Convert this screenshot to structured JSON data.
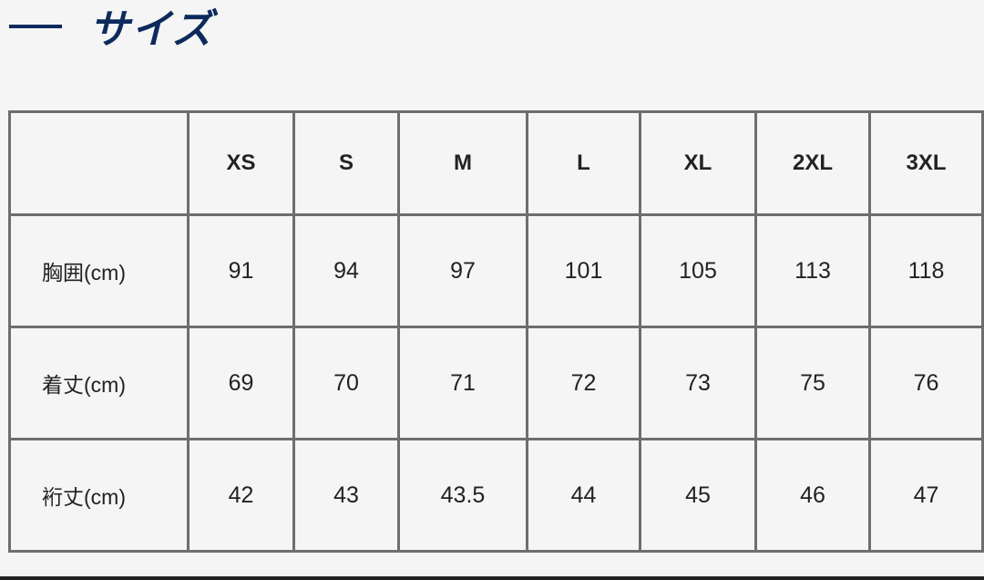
{
  "section": {
    "title": "サイズ"
  },
  "table": {
    "headers": [
      "",
      "XS",
      "S",
      "M",
      "L",
      "XL",
      "2XL",
      "3XL"
    ],
    "rows": [
      {
        "label": "胸囲(cm)",
        "values": [
          "91",
          "94",
          "97",
          "101",
          "105",
          "113",
          "118"
        ]
      },
      {
        "label": "着丈(cm)",
        "values": [
          "69",
          "70",
          "71",
          "72",
          "73",
          "75",
          "76"
        ]
      },
      {
        "label": "裄丈(cm)",
        "values": [
          "42",
          "43",
          "43.5",
          "44",
          "45",
          "46",
          "47"
        ]
      }
    ]
  },
  "colors": {
    "title": "#0d2a5c",
    "border": "#6e6e6e",
    "background": "#f5f5f5"
  }
}
